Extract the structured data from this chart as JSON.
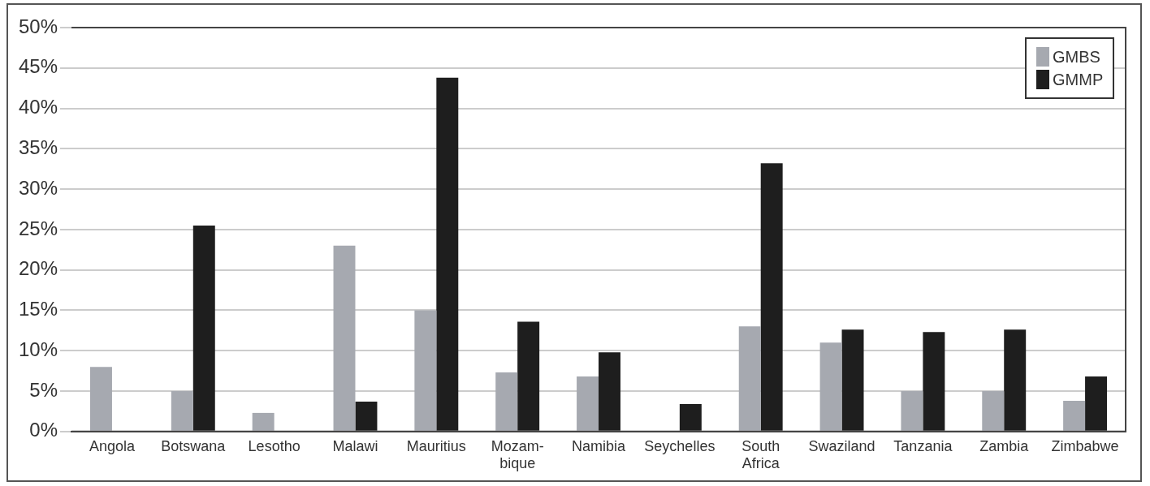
{
  "chart_data": {
    "type": "bar",
    "categories": [
      "Angola",
      "Botswana",
      "Lesotho",
      "Malawi",
      "Mauritius",
      "Mozam-bique",
      "Namibia",
      "Seychelles",
      "South Africa",
      "Swaziland",
      "Tanzania",
      "Zambia",
      "Zimbabwe"
    ],
    "series": [
      {
        "name": "GMBS",
        "color": "#a6a9b0",
        "values": [
          8,
          5,
          2.3,
          23,
          15,
          7.3,
          6.8,
          null,
          13,
          11,
          5,
          5,
          3.8
        ]
      },
      {
        "name": "GMMP",
        "color": "#1e1e1e",
        "values": [
          null,
          25.5,
          null,
          3.7,
          43.8,
          13.6,
          9.8,
          3.4,
          33.2,
          12.6,
          12.3,
          12.6,
          6.8
        ]
      }
    ],
    "ylim": [
      0,
      50
    ],
    "yticks": [
      {
        "value": 0,
        "label": "0%"
      },
      {
        "value": 5,
        "label": "5%"
      },
      {
        "value": 10,
        "label": "10%"
      },
      {
        "value": 15,
        "label": "15%"
      },
      {
        "value": 20,
        "label": "20%"
      },
      {
        "value": 25,
        "label": "25%"
      },
      {
        "value": 30,
        "label": "30%"
      },
      {
        "value": 35,
        "label": "35%"
      },
      {
        "value": 40,
        "label": "40%"
      },
      {
        "value": 45,
        "label": "45%"
      },
      {
        "value": 50,
        "label": "50%"
      }
    ],
    "grid": "y",
    "legend": "top right"
  }
}
